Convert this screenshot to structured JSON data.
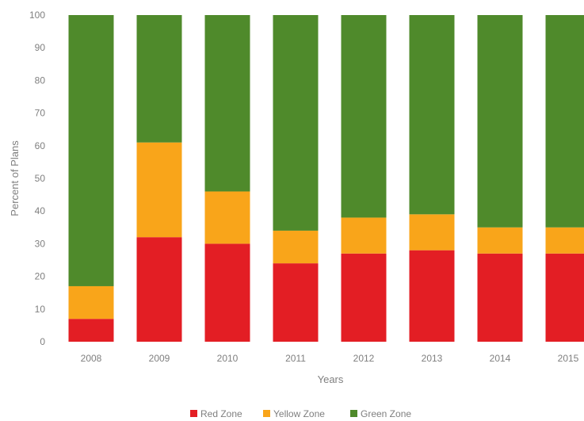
{
  "chart_data": {
    "type": "bar",
    "stacked": true,
    "categories": [
      "2008",
      "2009",
      "2010",
      "2011",
      "2012",
      "2013",
      "2014",
      "2015"
    ],
    "series": [
      {
        "name": "Red Zone",
        "color": "#e31e24",
        "values": [
          7,
          32,
          30,
          24,
          27,
          28,
          27,
          27
        ]
      },
      {
        "name": "Yellow Zone",
        "color": "#f9a51a",
        "values": [
          10,
          29,
          16,
          10,
          11,
          11,
          8,
          8
        ]
      },
      {
        "name": "Green Zone",
        "color": "#4f8a2b",
        "values": [
          83,
          39,
          54,
          66,
          62,
          61,
          65,
          65
        ]
      }
    ],
    "xlabel": "Years",
    "ylabel": "Percent of Plans",
    "ylim": [
      0,
      100
    ],
    "yticks": [
      "0",
      "10",
      "20",
      "30",
      "40",
      "50",
      "60",
      "70",
      "80",
      "90",
      "100"
    ],
    "grid": false,
    "legend_position": "bottom-center"
  }
}
